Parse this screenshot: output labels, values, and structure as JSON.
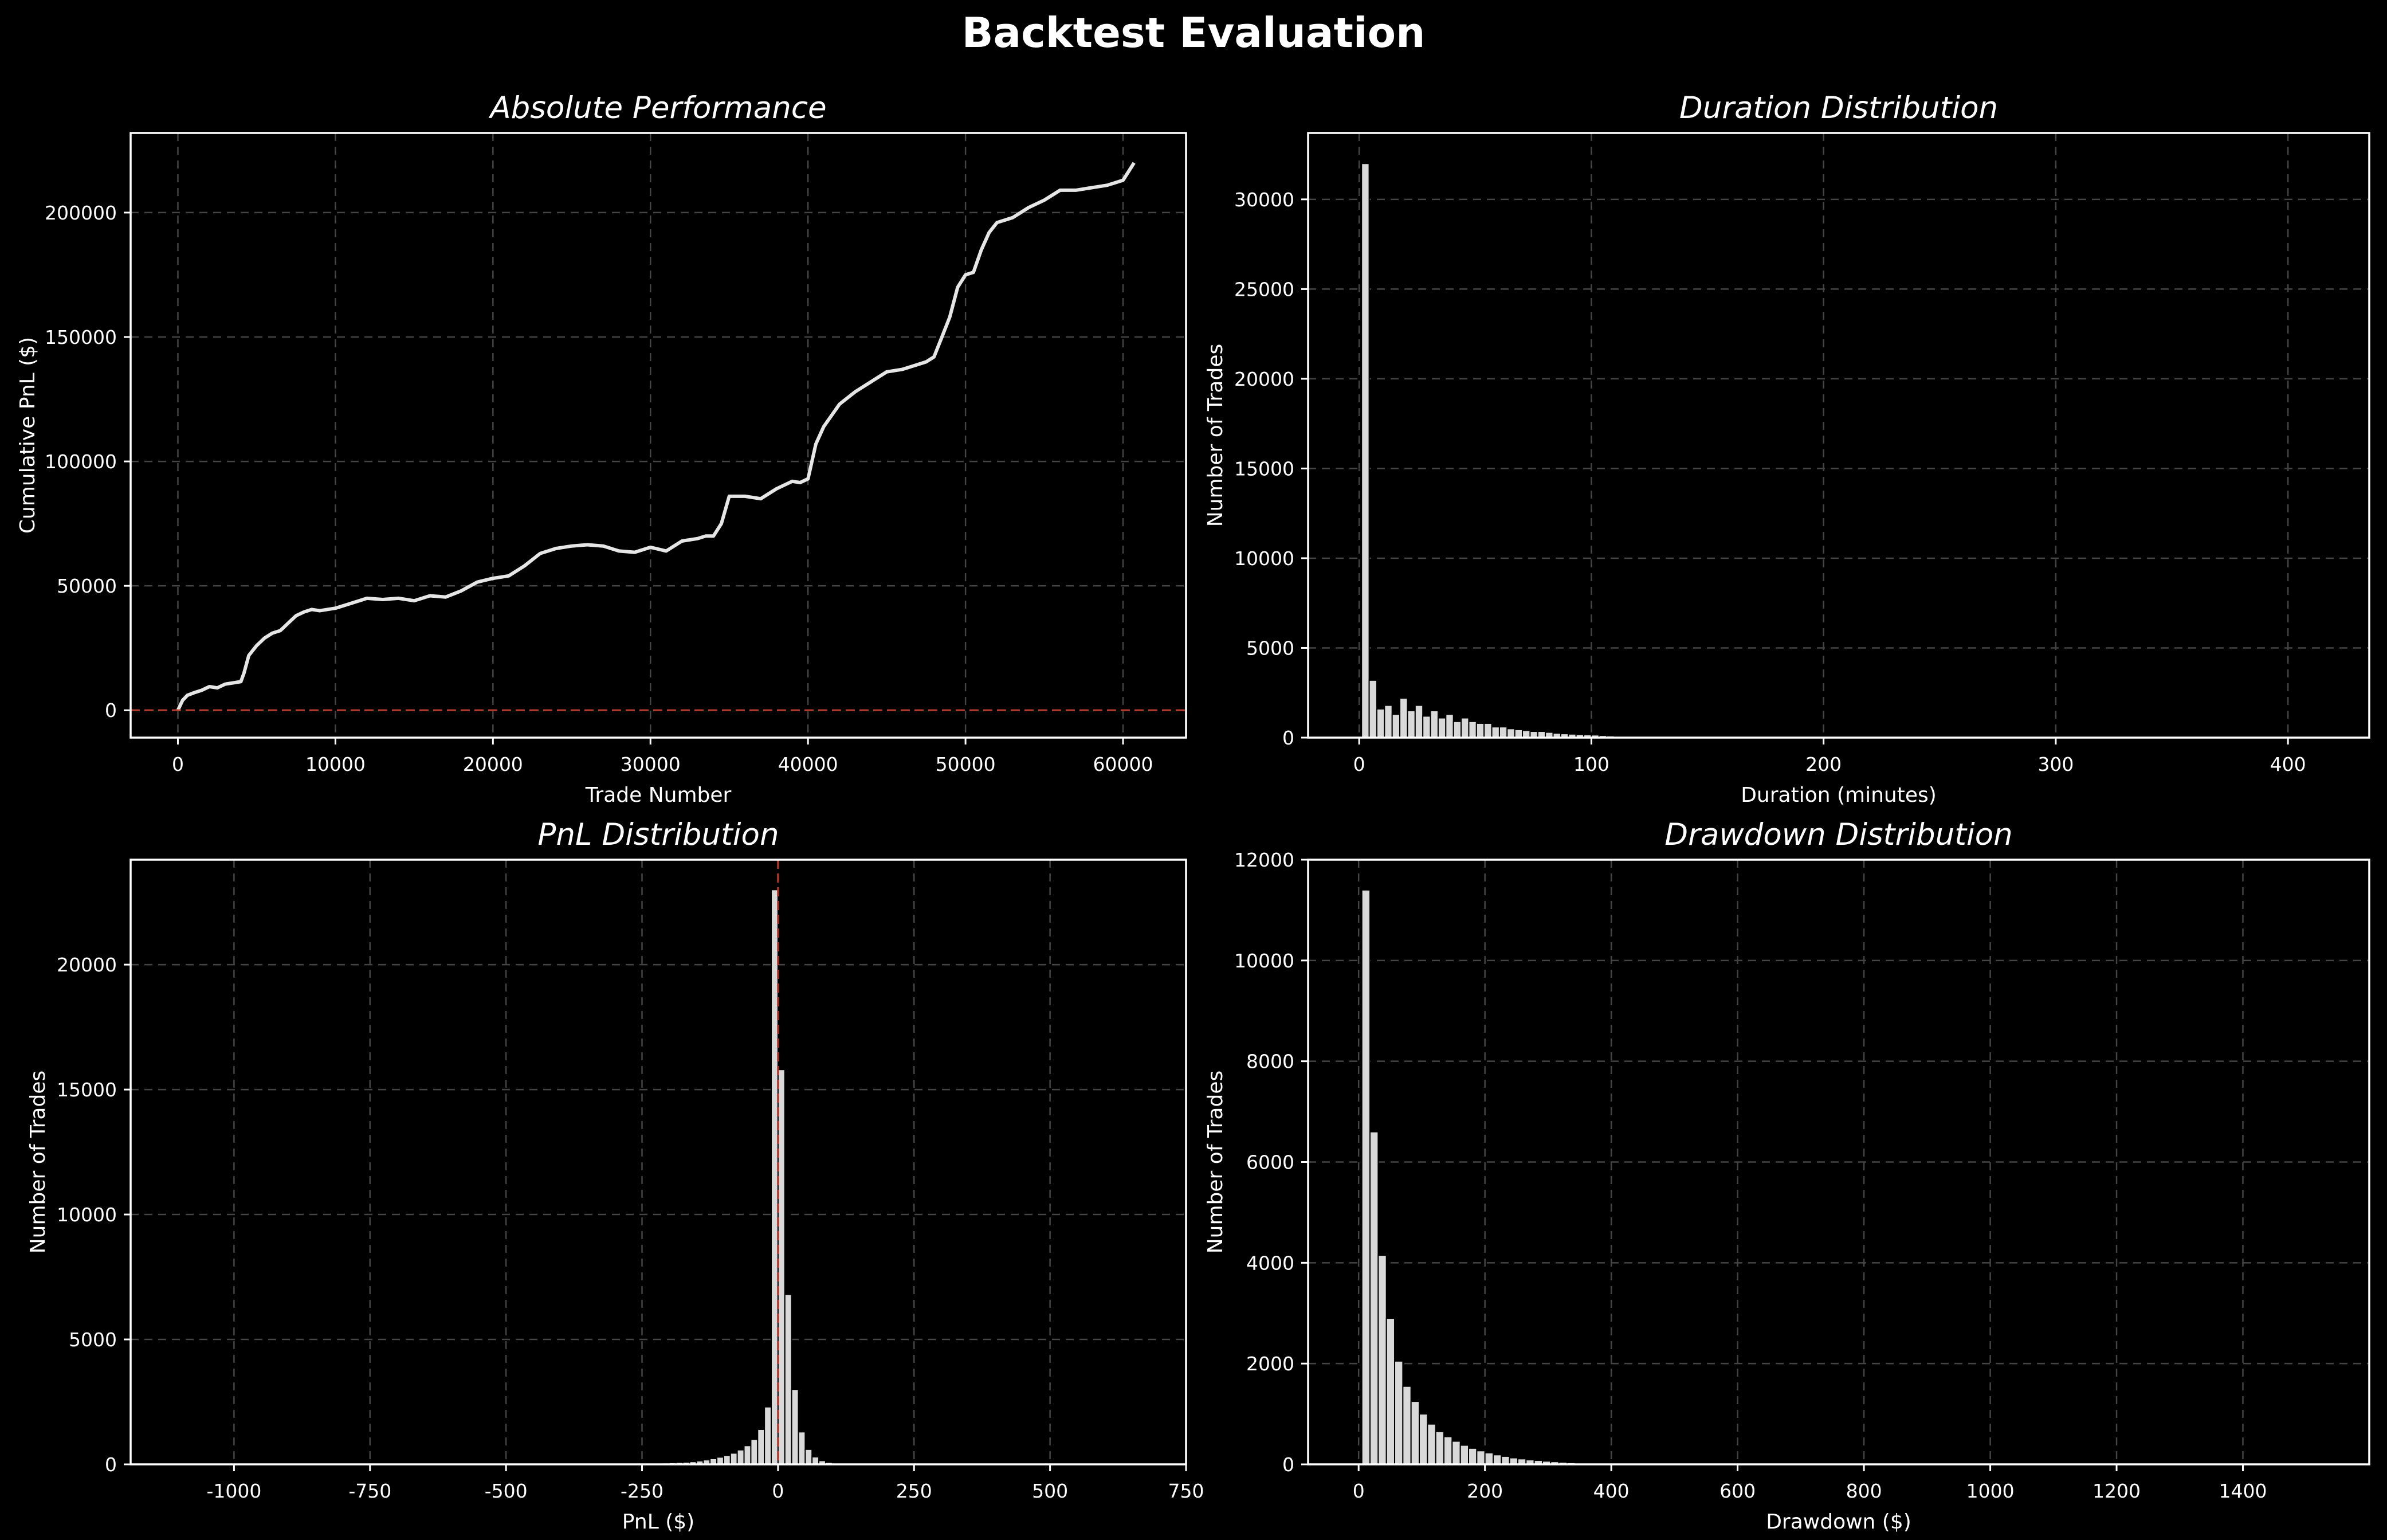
{
  "page": {
    "title": "Backtest Evaluation",
    "colors": {
      "background": "#000000",
      "foreground": "#ffffff",
      "bar_fill": "#d9d9d9",
      "line": "#e6e6e6",
      "grid": "#444444",
      "ref_line": "#c0392b"
    }
  },
  "chart_data": [
    {
      "type": "line",
      "title": "Absolute Performance",
      "xlabel": "Trade Number",
      "ylabel": "Cumulative PnL ($)",
      "xlim": [
        -3000,
        64000
      ],
      "ylim": [
        -11000,
        232000
      ],
      "xticks": [
        0,
        10000,
        20000,
        30000,
        40000,
        50000,
        60000
      ],
      "yticks": [
        0,
        50000,
        100000,
        150000,
        200000
      ],
      "grid": true,
      "hline": 0,
      "series": [
        {
          "x": [
            0,
            300,
            600,
            1000,
            1500,
            2000,
            2500,
            3000,
            3500,
            4000,
            4200,
            4500,
            5000,
            5500,
            6000,
            6500,
            7000,
            7500,
            8000,
            8500,
            9000,
            10000,
            11000,
            12000,
            13000,
            14000,
            15000,
            16000,
            17000,
            18000,
            19000,
            20000,
            21000,
            22000,
            23000,
            24000,
            25000,
            26000,
            27000,
            28000,
            29000,
            30000,
            31000,
            32000,
            33000,
            33500,
            34000,
            34500,
            35000,
            36000,
            37000,
            38000,
            39000,
            39500,
            40000,
            40500,
            41000,
            42000,
            43000,
            44000,
            45000,
            46000,
            47000,
            47500,
            48000,
            48500,
            49000,
            49500,
            50000,
            50500,
            51000,
            51500,
            52000,
            52500,
            53000,
            54000,
            55000,
            56000,
            57000,
            58000,
            59000,
            60000,
            60700
          ],
          "y": [
            0,
            4000,
            6000,
            7000,
            8000,
            9500,
            9000,
            10500,
            11000,
            11500,
            15000,
            22000,
            26000,
            29000,
            31000,
            32000,
            35000,
            38000,
            39500,
            40500,
            40000,
            41000,
            43000,
            45000,
            44500,
            45000,
            44000,
            46000,
            45500,
            48000,
            51500,
            53000,
            54000,
            58000,
            63000,
            65000,
            66000,
            66500,
            66000,
            64000,
            63500,
            65500,
            64000,
            68000,
            69000,
            70000,
            70000,
            75000,
            86000,
            86000,
            85000,
            89000,
            92000,
            91500,
            93000,
            107000,
            114000,
            123000,
            128000,
            132000,
            136000,
            137000,
            139000,
            140000,
            142000,
            150000,
            158000,
            170000,
            175000,
            176000,
            185000,
            192000,
            196000,
            197000,
            198000,
            202000,
            205000,
            209000,
            209000,
            210000,
            211000,
            213000,
            220000
          ]
        }
      ]
    },
    {
      "type": "bar",
      "title": "Duration Distribution",
      "xlabel": "Duration (minutes)",
      "ylabel": "Number of Trades",
      "xlim": [
        -22,
        435
      ],
      "ylim": [
        0,
        33700
      ],
      "xticks": [
        0,
        100,
        200,
        300,
        400
      ],
      "yticks": [
        0,
        5000,
        10000,
        15000,
        20000,
        25000,
        30000
      ],
      "grid": true,
      "bin_start": 1,
      "bin_width": 3.3,
      "values": [
        32000,
        3200,
        1600,
        1800,
        1300,
        2200,
        1500,
        1800,
        1200,
        1500,
        1100,
        1300,
        900,
        1100,
        900,
        800,
        800,
        600,
        600,
        500,
        450,
        400,
        350,
        350,
        300,
        250,
        220,
        200,
        180,
        160,
        150,
        120,
        100,
        80,
        70,
        60,
        50,
        40,
        30,
        20
      ]
    },
    {
      "type": "bar",
      "title": "PnL Distribution",
      "xlabel": "PnL ($)",
      "ylabel": "Number of Trades",
      "xlim": [
        -1190,
        750
      ],
      "ylim": [
        0,
        24200
      ],
      "xticks": [
        -1000,
        -750,
        -500,
        -250,
        0,
        250,
        500,
        750
      ],
      "yticks": [
        0,
        5000,
        10000,
        15000,
        20000
      ],
      "grid": true,
      "vline": 0,
      "bin_start": -250,
      "bin_width": 12.5,
      "values": [
        30,
        40,
        50,
        60,
        70,
        80,
        90,
        110,
        140,
        180,
        230,
        290,
        360,
        450,
        580,
        750,
        1000,
        1400,
        2300,
        23000,
        15800,
        6800,
        3000,
        1300,
        600,
        300,
        150,
        80,
        50,
        30,
        20,
        15
      ]
    },
    {
      "type": "bar",
      "title": "Drawdown Distribution",
      "xlabel": "Drawdown ($)",
      "ylabel": "Number of Trades",
      "xlim": [
        -80,
        1600
      ],
      "ylim": [
        0,
        12000
      ],
      "xticks": [
        0,
        200,
        400,
        600,
        800,
        1000,
        1200,
        1400
      ],
      "yticks": [
        0,
        2000,
        4000,
        6000,
        8000,
        10000,
        12000
      ],
      "grid": true,
      "bin_start": 5,
      "bin_width": 13,
      "values": [
        11400,
        6600,
        4150,
        2900,
        2050,
        1550,
        1250,
        1000,
        800,
        650,
        550,
        460,
        380,
        320,
        270,
        230,
        190,
        160,
        130,
        110,
        90,
        80,
        65,
        55,
        45,
        35,
        28,
        22,
        18,
        14
      ]
    }
  ]
}
